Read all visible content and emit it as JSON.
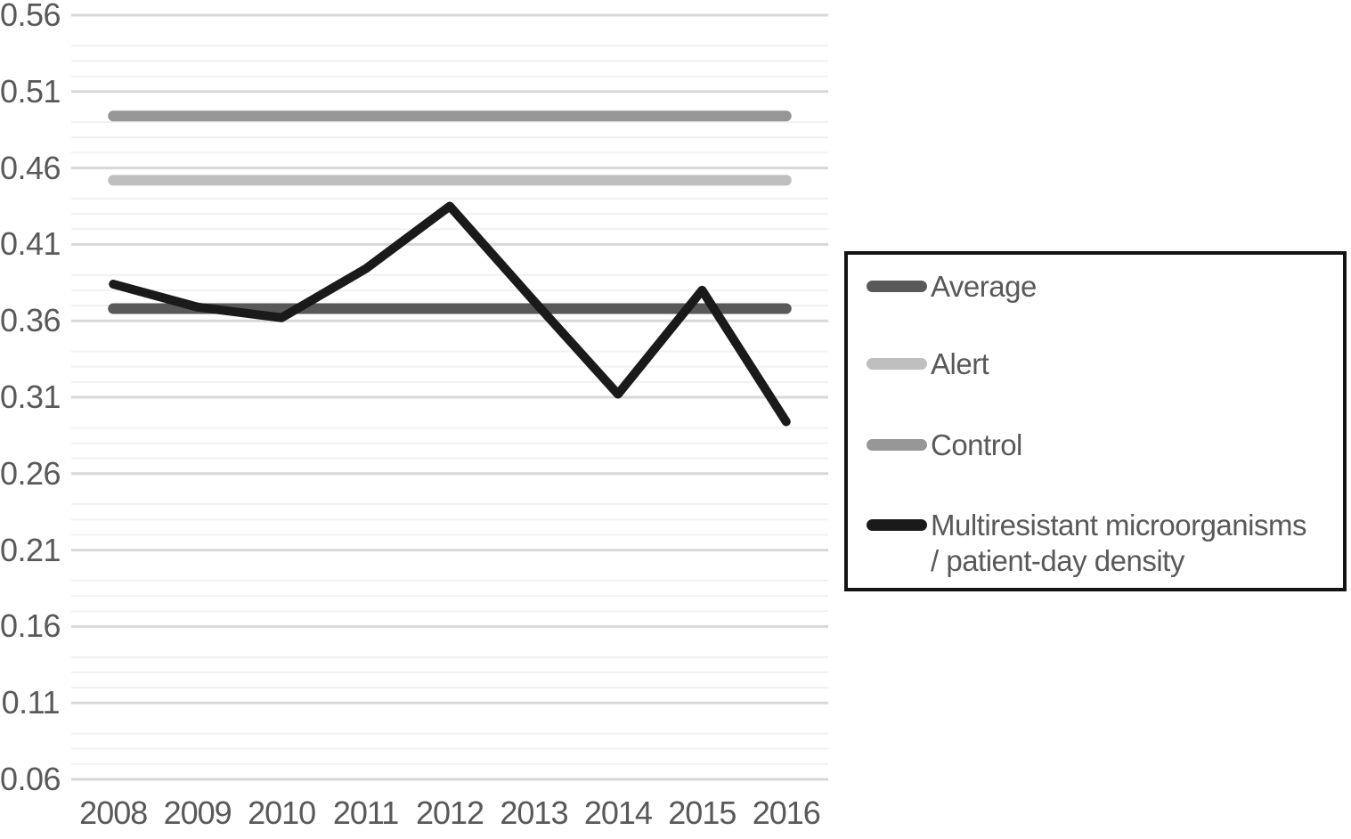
{
  "chart_data": {
    "type": "line",
    "title": "",
    "xlabel": "",
    "ylabel": "",
    "x_categories": [
      "2008",
      "2009",
      "2010",
      "2011",
      "2012",
      "2013",
      "2014",
      "2015",
      "2016"
    ],
    "series": [
      {
        "name": "Average",
        "style": "reference-line",
        "color": "#595959",
        "value": 0.368
      },
      {
        "name": "Alert",
        "style": "reference-line",
        "color": "#bfbfbf",
        "value": 0.452
      },
      {
        "name": "Control",
        "style": "reference-line",
        "color": "#969696",
        "value": 0.494
      },
      {
        "name": "Multiresistant microorganisms / patient-day density",
        "style": "data-line",
        "color": "#1a1a1a",
        "values": [
          0.384,
          0.369,
          0.362,
          0.394,
          0.435,
          0.373,
          0.312,
          0.38,
          0.294
        ]
      }
    ],
    "ylim": [
      0.06,
      0.56
    ],
    "yticks": [
      "0.56",
      "0.51",
      "0.46",
      "0.41",
      "0.36",
      "0.31",
      "0.26",
      "0.21",
      "0.16",
      "0.11",
      "0.06"
    ],
    "ytick_values": [
      0.56,
      0.51,
      0.46,
      0.41,
      0.36,
      0.31,
      0.26,
      0.21,
      0.16,
      0.11,
      0.06
    ],
    "major_grid_step": 0.05,
    "minor_grid_step": 0.01,
    "grid": "horizontal",
    "legend_position": "right-box"
  },
  "legend": {
    "items": [
      {
        "label": "Average",
        "color": "#595959"
      },
      {
        "label": "Alert",
        "color": "#bfbfbf"
      },
      {
        "label": "Control",
        "color": "#969696"
      },
      {
        "label": "Multiresistant microorganisms\n/ patient-day density",
        "color": "#1a1a1a"
      }
    ]
  },
  "style_colors": {
    "gridline_major": "#d8d8d8",
    "gridline_minor": "#f1f1f1",
    "tick_text": "#595959",
    "legend_border": "#141414",
    "background": "#ffffff"
  }
}
